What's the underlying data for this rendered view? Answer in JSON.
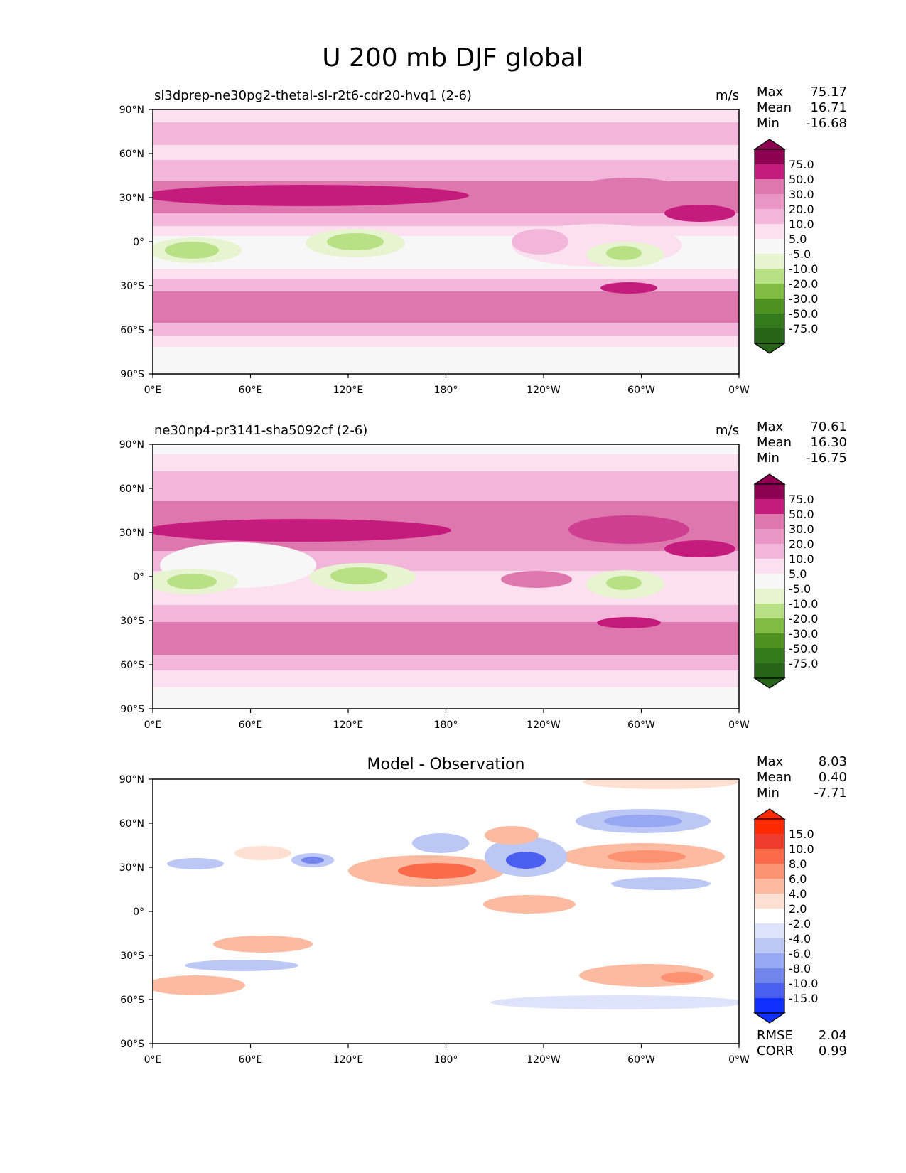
{
  "figure": {
    "title": "U 200 mb DJF global"
  },
  "colors": {
    "background": "#f7f7f7",
    "pink": [
      "#fde0ef",
      "#f1b6da",
      "#de77ae",
      "#c51b7d",
      "#8e0152"
    ],
    "green": [
      "#e6f5d0",
      "#b8e186",
      "#7fbc41",
      "#4d9221",
      "#276419"
    ],
    "diff_red": [
      "#fee0d2",
      "#fcbba1",
      "#fc9272",
      "#fb6a4a",
      "#ef3b2c",
      "#ff2a00"
    ],
    "diff_blue": [
      "#dde3fb",
      "#bcc7f6",
      "#96a8f1",
      "#7386ee",
      "#4a5ef0",
      "#1030ff"
    ]
  },
  "chart_data": [
    {
      "type": "heatmap",
      "panel": "test",
      "title": "sl3dprep-ne30pg2-thetal-sl-r2t6-cdr20-hvq1 (2-6)",
      "units": "m/s",
      "stats": [
        {
          "label": "Max",
          "value": "75.17"
        },
        {
          "label": "Mean",
          "value": "16.71"
        },
        {
          "label": "Min",
          "value": "-16.68"
        }
      ],
      "x_ticks": [
        "0°E",
        "60°E",
        "120°E",
        "180°",
        "120°W",
        "60°W",
        "0°W"
      ],
      "y_ticks": [
        "90°N",
        "60°N",
        "30°N",
        "0°",
        "30°S",
        "60°S",
        "90°S"
      ],
      "xlim": [
        0,
        360
      ],
      "ylim": [
        -90,
        90
      ],
      "colorbar_levels": [
        "75.0",
        "50.0",
        "30.0",
        "20.0",
        "10.0",
        "5.0",
        "-5.0",
        "-10.0",
        "-20.0",
        "-30.0",
        "-50.0",
        "-75.0"
      ],
      "colormap": "PiYG (pink positive, green negative)"
    },
    {
      "type": "heatmap",
      "panel": "reference",
      "title": "ne30np4-pr3141-sha5092cf (2-6)",
      "units": "m/s",
      "stats": [
        {
          "label": "Max",
          "value": "70.61"
        },
        {
          "label": "Mean",
          "value": "16.30"
        },
        {
          "label": "Min",
          "value": "-16.75"
        }
      ],
      "x_ticks": [
        "0°E",
        "60°E",
        "120°E",
        "180°",
        "120°W",
        "60°W",
        "0°W"
      ],
      "y_ticks": [
        "90°N",
        "60°N",
        "30°N",
        "0°",
        "30°S",
        "60°S",
        "90°S"
      ],
      "xlim": [
        0,
        360
      ],
      "ylim": [
        -90,
        90
      ],
      "colorbar_levels": [
        "75.0",
        "50.0",
        "30.0",
        "20.0",
        "10.0",
        "5.0",
        "-5.0",
        "-10.0",
        "-20.0",
        "-30.0",
        "-50.0",
        "-75.0"
      ],
      "colormap": "PiYG (pink positive, green negative)"
    },
    {
      "type": "heatmap",
      "panel": "difference",
      "title": "Model - Observation",
      "units": "",
      "stats": [
        {
          "label": "Max",
          "value": "8.03"
        },
        {
          "label": "Mean",
          "value": "0.40"
        },
        {
          "label": "Min",
          "value": "-7.71"
        }
      ],
      "extra_stats": [
        {
          "label": "RMSE",
          "value": "2.04"
        },
        {
          "label": "CORR",
          "value": "0.99"
        }
      ],
      "x_ticks": [
        "0°E",
        "60°E",
        "120°E",
        "180°",
        "120°W",
        "60°W",
        "0°W"
      ],
      "y_ticks": [
        "90°N",
        "60°N",
        "30°N",
        "0°",
        "30°S",
        "60°S",
        "90°S"
      ],
      "xlim": [
        0,
        360
      ],
      "ylim": [
        -90,
        90
      ],
      "colorbar_levels": [
        "15.0",
        "10.0",
        "8.0",
        "6.0",
        "4.0",
        "2.0",
        "-2.0",
        "-4.0",
        "-6.0",
        "-8.0",
        "-10.0",
        "-15.0"
      ],
      "colormap": "bwr (red positive, blue negative)"
    }
  ]
}
